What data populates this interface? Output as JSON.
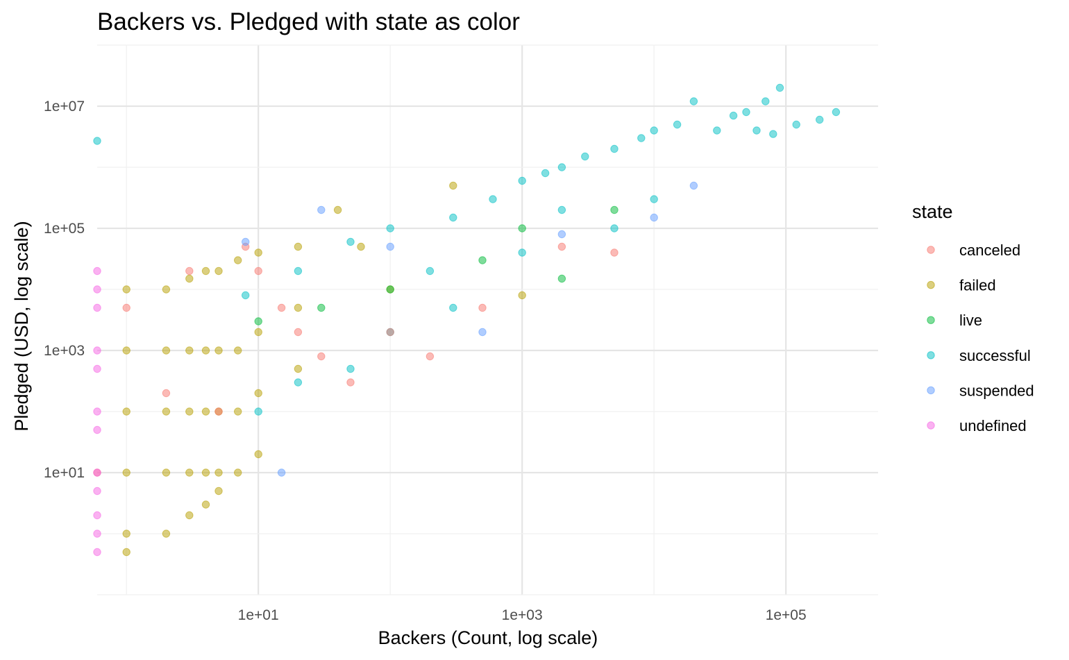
{
  "chart_data": {
    "type": "scatter",
    "title": "Backers vs. Pledged with state as color",
    "xlabel": "Backers (Count, log scale)",
    "ylabel": "Pledged (USD, log scale)",
    "x_scale": "log10",
    "y_scale": "log10",
    "xlim": [
      0.6,
      500000
    ],
    "ylim": [
      0.1,
      100000000
    ],
    "x_ticks": [
      10,
      1000,
      100000
    ],
    "x_tick_labels": [
      "1e+01",
      "1e+03",
      "1e+05"
    ],
    "y_ticks": [
      10,
      1000,
      100000,
      10000000
    ],
    "y_tick_labels": [
      "1e+01",
      "1e+03",
      "1e+05",
      "1e+07"
    ],
    "grid": true,
    "legend": {
      "title": "state",
      "placement": "right",
      "entries": [
        "canceled",
        "failed",
        "live",
        "successful",
        "suspended",
        "undefined"
      ]
    },
    "colors": {
      "canceled": "#F8766D",
      "failed": "#B79F00",
      "live": "#00BA38",
      "successful": "#00BFC4",
      "suspended": "#619CFF",
      "undefined": "#F564E3"
    },
    "series": [
      {
        "name": "successful",
        "points": [
          [
            240000,
            8000000
          ],
          [
            180000,
            6000000
          ],
          [
            120000,
            5000000
          ],
          [
            90000,
            20000000
          ],
          [
            80000,
            3500000
          ],
          [
            70000,
            12000000
          ],
          [
            60000,
            4000000
          ],
          [
            50000,
            8000000
          ],
          [
            40000,
            7000000
          ],
          [
            30000,
            4000000
          ],
          [
            20000,
            12000000
          ],
          [
            15000,
            5000000
          ],
          [
            10000,
            4000000
          ],
          [
            8000,
            3000000
          ],
          [
            5000,
            2000000
          ],
          [
            3000,
            1500000
          ],
          [
            2000,
            1000000
          ],
          [
            1500,
            800000
          ],
          [
            1000,
            600000
          ],
          [
            600,
            300000
          ],
          [
            300,
            150000
          ],
          [
            100,
            100000
          ],
          [
            50,
            60000
          ],
          [
            20,
            20000
          ],
          [
            8,
            8000
          ],
          [
            1000,
            40000
          ],
          [
            300,
            5000
          ],
          [
            100,
            2000
          ],
          [
            50,
            500
          ],
          [
            20,
            300
          ],
          [
            10,
            100
          ],
          [
            5000,
            100000
          ],
          [
            10000,
            300000
          ],
          [
            200,
            20000
          ],
          [
            2000,
            200000
          ],
          [
            0.6,
            2700000
          ]
        ]
      },
      {
        "name": "failed",
        "points": [
          [
            1,
            10000
          ],
          [
            1,
            1000
          ],
          [
            1,
            100
          ],
          [
            1,
            10
          ],
          [
            1,
            1
          ],
          [
            1,
            0.5
          ],
          [
            2,
            10000
          ],
          [
            2,
            1000
          ],
          [
            2,
            100
          ],
          [
            2,
            10
          ],
          [
            2,
            1
          ],
          [
            3,
            15000
          ],
          [
            3,
            1000
          ],
          [
            3,
            100
          ],
          [
            3,
            10
          ],
          [
            3,
            2
          ],
          [
            4,
            20000
          ],
          [
            4,
            1000
          ],
          [
            4,
            100
          ],
          [
            4,
            10
          ],
          [
            4,
            3
          ],
          [
            5,
            20000
          ],
          [
            5,
            1000
          ],
          [
            5,
            100
          ],
          [
            5,
            10
          ],
          [
            5,
            5
          ],
          [
            7,
            30000
          ],
          [
            7,
            1000
          ],
          [
            7,
            100
          ],
          [
            7,
            10
          ],
          [
            10,
            40000
          ],
          [
            10,
            2000
          ],
          [
            10,
            200
          ],
          [
            10,
            20
          ],
          [
            20,
            50000
          ],
          [
            20,
            5000
          ],
          [
            20,
            500
          ],
          [
            40,
            200000
          ],
          [
            60,
            50000
          ],
          [
            100,
            10000
          ],
          [
            300,
            500000
          ],
          [
            1000,
            8000
          ]
        ]
      },
      {
        "name": "canceled",
        "points": [
          [
            1,
            5000
          ],
          [
            2,
            200
          ],
          [
            3,
            20000
          ],
          [
            5,
            100
          ],
          [
            8,
            50000
          ],
          [
            10,
            20000
          ],
          [
            15,
            5000
          ],
          [
            20,
            2000
          ],
          [
            30,
            800
          ],
          [
            50,
            300
          ],
          [
            100,
            2000
          ],
          [
            200,
            800
          ],
          [
            500,
            5000
          ],
          [
            2000,
            50000
          ],
          [
            5000,
            40000
          ],
          [
            0.6,
            10
          ]
        ]
      },
      {
        "name": "live",
        "points": [
          [
            10,
            3000
          ],
          [
            30,
            5000
          ],
          [
            100,
            10000
          ],
          [
            500,
            30000
          ],
          [
            1000,
            100000
          ],
          [
            2000,
            15000
          ],
          [
            5000,
            200000
          ]
        ]
      },
      {
        "name": "suspended",
        "points": [
          [
            8,
            60000
          ],
          [
            30,
            200000
          ],
          [
            100,
            50000
          ],
          [
            500,
            2000
          ],
          [
            2000,
            80000
          ],
          [
            10000,
            150000
          ],
          [
            20000,
            500000
          ],
          [
            15,
            10
          ]
        ]
      },
      {
        "name": "undefined",
        "points": [
          [
            0.6,
            20000
          ],
          [
            0.6,
            10000
          ],
          [
            0.6,
            5000
          ],
          [
            0.6,
            1000
          ],
          [
            0.6,
            500
          ],
          [
            0.6,
            100
          ],
          [
            0.6,
            50
          ],
          [
            0.6,
            10
          ],
          [
            0.6,
            5
          ],
          [
            0.6,
            2
          ],
          [
            0.6,
            1
          ],
          [
            0.6,
            0.5
          ]
        ]
      }
    ]
  }
}
